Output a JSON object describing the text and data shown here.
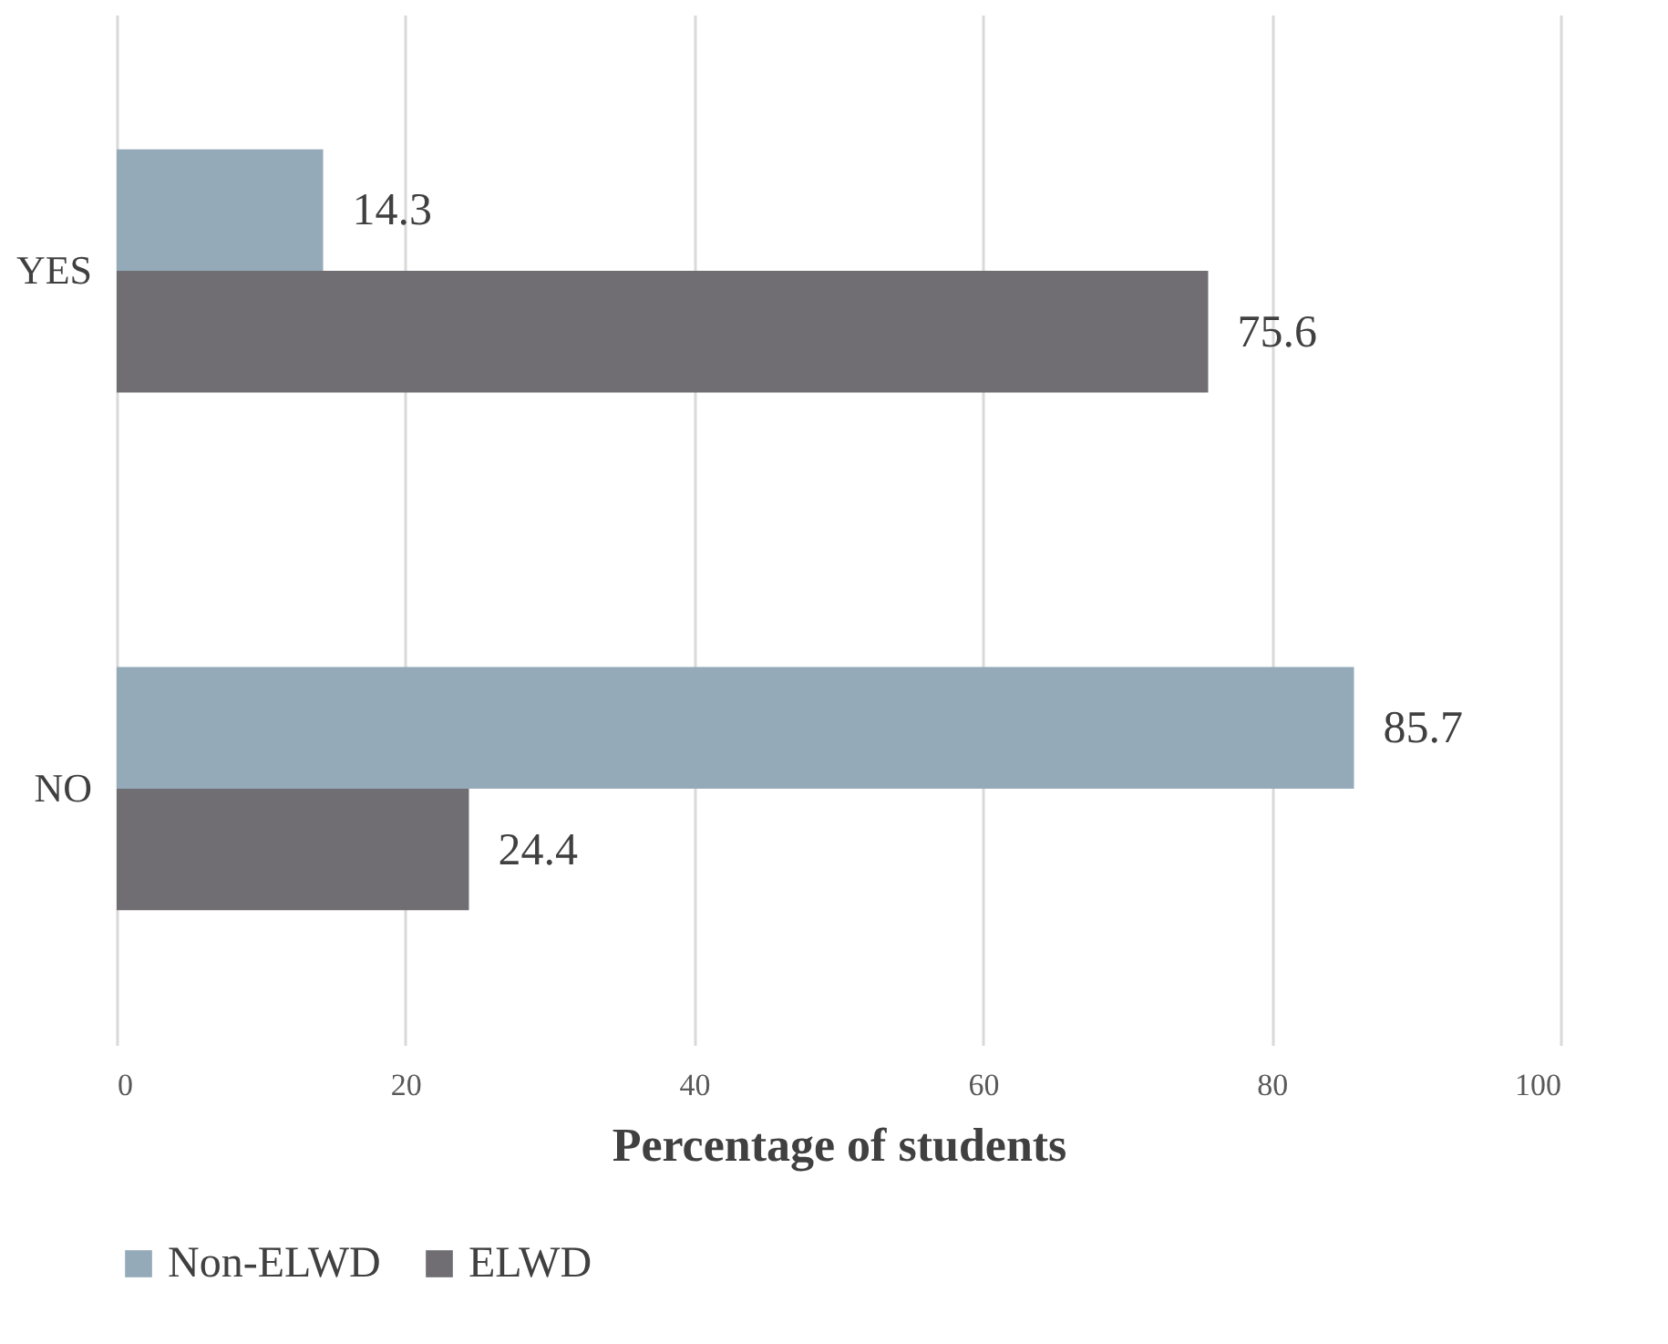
{
  "chart_data": {
    "type": "bar",
    "orientation": "horizontal",
    "categories": [
      "YES",
      "NO"
    ],
    "series": [
      {
        "name": "Non-ELWD",
        "color": "#94aab9",
        "values": [
          14.3,
          85.7
        ]
      },
      {
        "name": "ELWD",
        "color": "#706e73",
        "values": [
          75.6,
          24.4
        ]
      }
    ],
    "xlabel": "Percentage of  students",
    "xlim": [
      0,
      100
    ],
    "xticks": [
      0,
      20,
      40,
      60,
      80,
      100
    ],
    "grid": "x",
    "legend": "bottom",
    "data_labels": true
  }
}
